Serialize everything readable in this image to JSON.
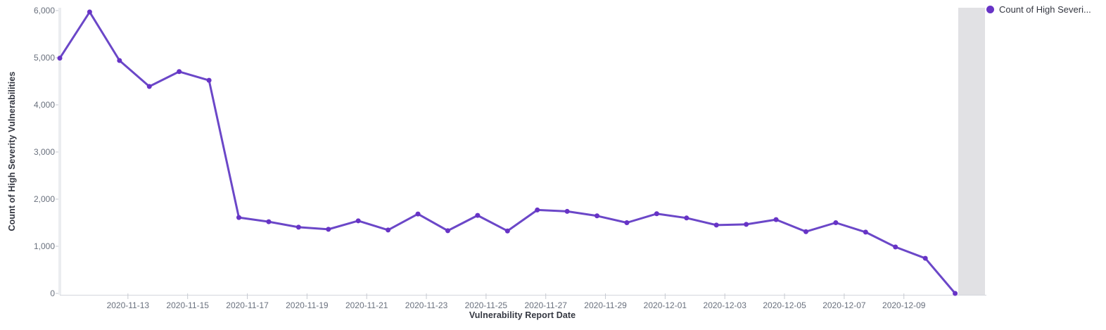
{
  "chart_data": {
    "type": "line",
    "series_name": "Count of High Severity Vulnerabilities",
    "legend_label": "Count of High Severi...",
    "xlabel": "Vulnerability Report Date",
    "ylabel": "Count of High Severity Vulnerabilities",
    "x": [
      "2020-11-11",
      "2020-11-12",
      "2020-11-13",
      "2020-11-14",
      "2020-11-15",
      "2020-11-16",
      "2020-11-17",
      "2020-11-18",
      "2020-11-19",
      "2020-11-20",
      "2020-11-21",
      "2020-11-22",
      "2020-11-23",
      "2020-11-24",
      "2020-11-25",
      "2020-11-26",
      "2020-11-27",
      "2020-11-28",
      "2020-11-29",
      "2020-11-30",
      "2020-12-01",
      "2020-12-02",
      "2020-12-03",
      "2020-12-04",
      "2020-12-05",
      "2020-12-06",
      "2020-12-07",
      "2020-12-08",
      "2020-12-09",
      "2020-12-10",
      "2020-12-11"
    ],
    "values": [
      4990,
      5970,
      4940,
      4390,
      4705,
      4520,
      1610,
      1520,
      1405,
      1360,
      1540,
      1345,
      1685,
      1330,
      1655,
      1325,
      1770,
      1740,
      1645,
      1500,
      1690,
      1600,
      1450,
      1465,
      1565,
      1310,
      1500,
      1300,
      985,
      745,
      0
    ],
    "x_tick_labels": [
      "2020-11-13",
      "2020-11-15",
      "2020-11-17",
      "2020-11-19",
      "2020-11-21",
      "2020-11-23",
      "2020-11-25",
      "2020-11-27",
      "2020-11-29",
      "2020-12-01",
      "2020-12-03",
      "2020-12-05",
      "2020-12-07",
      "2020-12-09"
    ],
    "y_ticks": [
      0,
      1000,
      2000,
      3000,
      4000,
      5000,
      6000
    ],
    "y_tick_labels": [
      "0",
      "1,000",
      "2,000",
      "3,000",
      "4,000",
      "5,000",
      "6,000"
    ],
    "ylim": [
      0,
      6000
    ],
    "grid": false,
    "legend_position": "top-right",
    "line_color": "#6B47C8",
    "marker_color": "#6733C6",
    "partial_bucket_band": true,
    "partial_band_color": "#E1E1E4",
    "axis_band_color": "#EBEDF0",
    "axis_line_color": "#D3D6DC",
    "tick_color": "#C6CAD1",
    "tick_label_color": "#69707D",
    "axis_title_color": "#343741"
  }
}
